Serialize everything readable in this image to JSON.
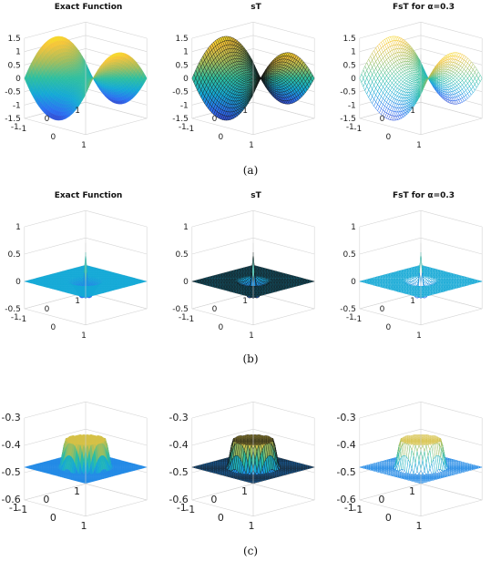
{
  "rows": [
    {
      "caption": "(a)",
      "panels": [
        {
          "title": "Exact Function",
          "style": "smooth",
          "zticks": [
            "1.5",
            "1",
            "0.5",
            "0",
            "-0.5",
            "-1",
            "-1.5"
          ],
          "xticks": [
            "-1",
            "0",
            "1"
          ],
          "yticks": [
            "1",
            "0",
            "-1"
          ]
        },
        {
          "title": "sT",
          "style": "mesh",
          "zticks": [
            "1.5",
            "1",
            "0.5",
            "0",
            "-0.5",
            "-1",
            "-1.5"
          ],
          "xticks": [
            "-1",
            "0",
            "1"
          ],
          "yticks": [
            "1",
            "0",
            "-1"
          ]
        },
        {
          "title": "FsT for α=0.3",
          "style": "mesh-light",
          "zticks": [
            "1.5",
            "1",
            "0.5",
            "0",
            "-0.5",
            "-1",
            "-1.5"
          ],
          "xticks": [
            "-1",
            "0",
            "1"
          ],
          "yticks": [
            "1",
            "0",
            "-1"
          ]
        }
      ]
    },
    {
      "caption": "(b)",
      "panels": [
        {
          "title": "Exact Function",
          "style": "smooth",
          "zticks": [
            "1",
            "0.5",
            "0",
            "-0.5"
          ],
          "xticks": [
            "-1",
            "0",
            "1"
          ],
          "yticks": [
            "1",
            "0",
            "-1"
          ]
        },
        {
          "title": "sT",
          "style": "mesh",
          "zticks": [
            "1",
            "0.5",
            "0",
            "-0.5"
          ],
          "xticks": [
            "-1",
            "0",
            "1"
          ],
          "yticks": [
            "1",
            "0",
            "-1"
          ]
        },
        {
          "title": "FsT for α=0.3",
          "style": "mesh-light",
          "zticks": [
            "1",
            "0.5",
            "0",
            "-0.5"
          ],
          "xticks": [
            "-1",
            "0",
            "1"
          ],
          "yticks": [
            "1",
            "0",
            "-1"
          ]
        }
      ]
    },
    {
      "caption": "(c)",
      "panels": [
        {
          "title": "",
          "style": "smooth",
          "zticks": [
            "-0.3",
            "-0.4",
            "-0.5",
            "-0.6"
          ],
          "xticks": [
            "-1",
            "0",
            "1"
          ],
          "yticks": [
            "1",
            "0",
            "-1"
          ]
        },
        {
          "title": "",
          "style": "mesh",
          "zticks": [
            "-0.3",
            "-0.4",
            "-0.5",
            "-0.6"
          ],
          "xticks": [
            "-1",
            "0",
            "1"
          ],
          "yticks": [
            "1",
            "0",
            "-1"
          ]
        },
        {
          "title": "",
          "style": "mesh-light",
          "zticks": [
            "-0.3",
            "-0.4",
            "-0.5",
            "-0.6"
          ],
          "xticks": [
            "-1",
            "0",
            "1"
          ],
          "yticks": [
            "1",
            "0",
            "-1"
          ]
        }
      ]
    }
  ],
  "colormap": [
    "#3e26a8",
    "#2c6ff2",
    "#14a9d6",
    "#2ebf9f",
    "#a3bd5c",
    "#f5c43a",
    "#f9fb15"
  ]
}
